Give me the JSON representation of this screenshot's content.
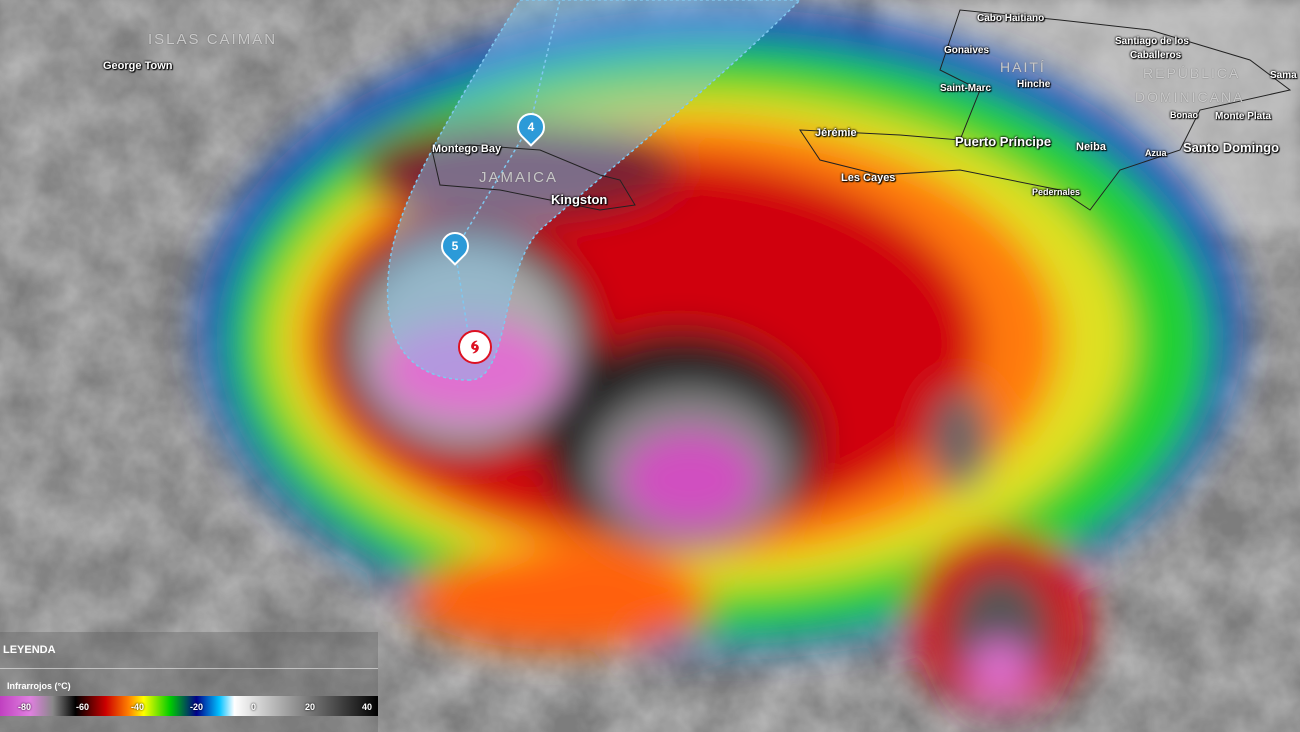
{
  "map": {
    "type": "infrared satellite hurricane map",
    "labels": {
      "islas_caiman": "ISLAS CAIMAN",
      "george_town": "George Town",
      "montego_bay": "Montego Bay",
      "jamaica": "JAMAICA",
      "kingston": "Kingston",
      "jeremie": "Jérémie",
      "les_cayes": "Les Cayes",
      "puerto_principe": "Puerto Príncipe",
      "neiba": "Neiba",
      "azua": "Azua",
      "santo_domingo": "Santo Domingo",
      "pedernales": "Pedernales",
      "bonao": "Bonao",
      "monte_plata": "Monte Plata",
      "cabo_haitiano": "Cabo Haitiano",
      "gonaives": "Gonaives",
      "saint_marc": "Saint-Marc",
      "hinche": "Hinche",
      "haiti": "HAITÍ",
      "santiago": "Santiago de los",
      "caballeros": "Caballeros",
      "republica": "REPÚBLICA",
      "dominicana": "DOMINICANA",
      "samana": "Sama"
    },
    "track": {
      "forecast_markers": [
        "4",
        "5"
      ],
      "current_icon": "hurricane-icon",
      "cone_color": "#7fc8f0",
      "marker_color": "#2c9ad8",
      "current_color": "#d11a22"
    }
  },
  "legend": {
    "title": "LEYENDA",
    "subtitle": "Infrarrojos (°C)",
    "ticks": [
      "-80",
      "-60",
      "-40",
      "-20",
      "0",
      "20",
      "40"
    ]
  }
}
